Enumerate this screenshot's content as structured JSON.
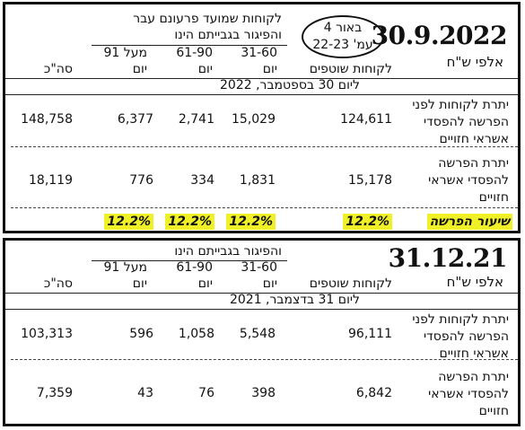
{
  "note": {
    "line1": "באור 4",
    "line2": "עמ' 22-23"
  },
  "p1": {
    "date": "30.9.2022",
    "unit": "אלפי ש\"ח",
    "group_header_1": "לקוחות שמועד פרעונם עבר",
    "group_header_2": "והפיגור בגבייתם הינו",
    "col_over91_1": "מעל 91",
    "col_61_90": "61-90",
    "col_31_60": "31-60",
    "col_yom": "יום",
    "col_current": "לקוחות שוטפים",
    "col_total": "סה\"כ",
    "as_of": "ליום 30 בספטמבר, 2022",
    "row1_label": [
      "יתרת לקוחות לפני",
      "הפרשה להפסדי",
      "אשראי חזויים"
    ],
    "row1": {
      "current": "124,611",
      "d31_60": "15,029",
      "d61_90": "2,741",
      "over91": "6,377",
      "total": "148,758"
    },
    "row2_label": [
      "יתרת הפרשה",
      "להפסדי אשראי",
      "חזויים"
    ],
    "row2": {
      "current": "15,178",
      "d31_60": "1,831",
      "d61_90": "334",
      "over91": "776",
      "total": "18,119"
    },
    "rate_label": "שיעור הפרשה",
    "rate": {
      "current": "12.2%",
      "d31_60": "12.2%",
      "d61_90": "12.2%",
      "over91": "12.2%"
    }
  },
  "p2": {
    "date": "31.12.21",
    "unit": "אלפי ש\"ח",
    "group_header": "והפיגור בגבייתם הינו",
    "col_over91": "מעל 91",
    "col_61_90": "61-90",
    "col_31_60": "31-60",
    "col_yom": "יום",
    "col_current": "לקוחות שוטפים",
    "col_total": "סה\"כ",
    "as_of": "ליום 31 בדצמבר, 2021",
    "row1_label": [
      "יתרת לקוחות לפני",
      "הפרשה להפסדי",
      "אשראי חזויים"
    ],
    "row1": {
      "current": "96,111",
      "d31_60": "5,548",
      "d61_90": "1,058",
      "over91": "596",
      "total": "103,313"
    },
    "row2_label": [
      "יתרת הפרשה",
      "להפסדי אשראי",
      "חזויים"
    ],
    "row2": {
      "current": "6,842",
      "d31_60": "398",
      "d61_90": "76",
      "over91": "43",
      "total": "7,359"
    }
  }
}
